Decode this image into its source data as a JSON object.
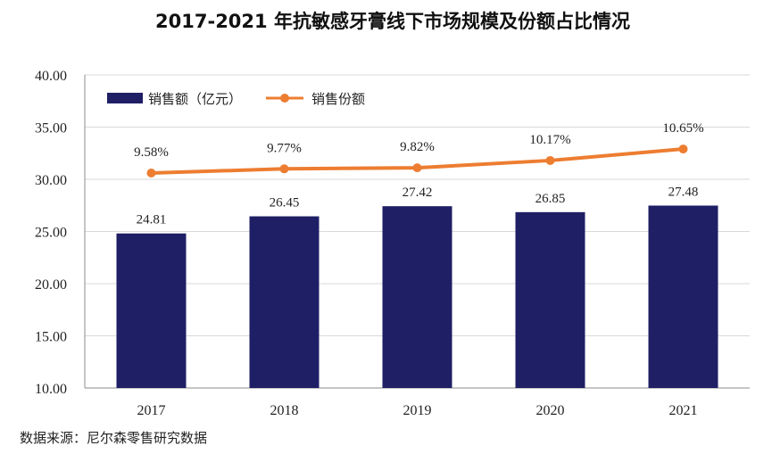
{
  "chart_data": {
    "type": "bar",
    "title": "2017-2021 年抗敏感牙膏线下市场规模及份额占比情况",
    "categories": [
      "2017",
      "2018",
      "2019",
      "2020",
      "2021"
    ],
    "ylim": [
      10,
      40
    ],
    "yticks": [
      "10.00",
      "15.00",
      "20.00",
      "25.00",
      "30.00",
      "35.00",
      "40.00"
    ],
    "series": [
      {
        "name": "销售额（亿元）",
        "type": "bar",
        "color": "#1F1F66",
        "values": [
          24.81,
          26.45,
          27.42,
          26.85,
          27.48
        ],
        "labels": [
          "24.81",
          "26.45",
          "27.42",
          "26.85",
          "27.48"
        ]
      },
      {
        "name": "销售份额",
        "type": "line",
        "color": "#ED7D31",
        "values": [
          9.58,
          9.77,
          9.82,
          10.17,
          10.65
        ],
        "labels": [
          "9.58%",
          "9.77%",
          "9.82%",
          "10.17%",
          "10.65%"
        ],
        "plot_on_left_axis": [
          30.6,
          31.0,
          31.1,
          31.8,
          32.9
        ]
      }
    ],
    "legend_position": "top-left",
    "source": "数据来源：尼尔森零售研究数据"
  }
}
